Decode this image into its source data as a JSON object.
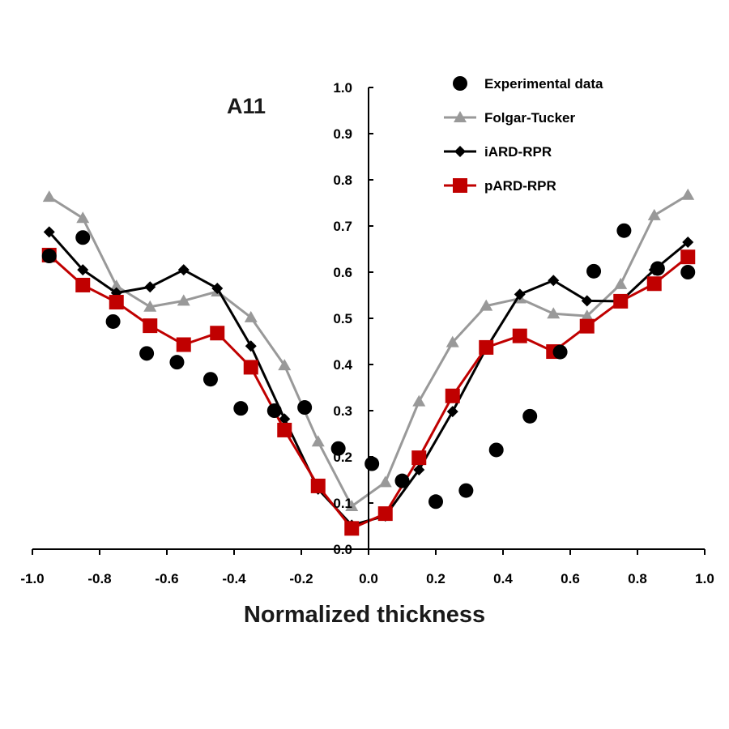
{
  "chart_data": {
    "type": "line",
    "title": "A11",
    "xlabel": "Normalized thickness",
    "ylabel": "",
    "xlim": [
      -1.0,
      1.0
    ],
    "ylim": [
      0.0,
      1.0
    ],
    "x_ticks": [
      "-1.0",
      "-0.8",
      "-0.6",
      "-0.4",
      "-0.2",
      "0.0",
      "0.2",
      "0.4",
      "0.6",
      "0.8",
      "1.0"
    ],
    "y_ticks": [
      "0.0",
      "0.1",
      "0.2",
      "0.3",
      "0.4",
      "0.5",
      "0.6",
      "0.7",
      "0.8",
      "0.9",
      "1.0"
    ],
    "grid": false,
    "legend_position": "top-right",
    "series": [
      {
        "name": "Experimental data",
        "style": "scatter",
        "marker": "circle",
        "color": "#000000",
        "points": [
          [
            -0.95,
            0.635
          ],
          [
            -0.85,
            0.675
          ],
          [
            -0.76,
            0.493
          ],
          [
            -0.66,
            0.424
          ],
          [
            -0.57,
            0.405
          ],
          [
            -0.47,
            0.368
          ],
          [
            -0.38,
            0.305
          ],
          [
            -0.28,
            0.3
          ],
          [
            -0.19,
            0.307
          ],
          [
            -0.09,
            0.218
          ],
          [
            0.01,
            0.185
          ],
          [
            0.1,
            0.148
          ],
          [
            0.2,
            0.103
          ],
          [
            0.29,
            0.127
          ],
          [
            0.38,
            0.215
          ],
          [
            0.48,
            0.288
          ],
          [
            0.57,
            0.427
          ],
          [
            0.67,
            0.602
          ],
          [
            0.76,
            0.69
          ],
          [
            0.86,
            0.608
          ],
          [
            0.95,
            0.6
          ]
        ]
      },
      {
        "name": "Folgar-Tucker",
        "style": "line",
        "marker": "triangle",
        "color": "#999999",
        "points": [
          [
            -0.95,
            0.763
          ],
          [
            -0.85,
            0.717
          ],
          [
            -0.75,
            0.57
          ],
          [
            -0.65,
            0.525
          ],
          [
            -0.55,
            0.538
          ],
          [
            -0.45,
            0.558
          ],
          [
            -0.35,
            0.502
          ],
          [
            -0.25,
            0.398
          ],
          [
            -0.15,
            0.233
          ],
          [
            -0.05,
            0.093
          ],
          [
            0.05,
            0.145
          ],
          [
            0.15,
            0.32
          ],
          [
            0.25,
            0.448
          ],
          [
            0.35,
            0.527
          ],
          [
            0.45,
            0.543
          ],
          [
            0.55,
            0.51
          ],
          [
            0.65,
            0.505
          ],
          [
            0.75,
            0.574
          ],
          [
            0.85,
            0.723
          ],
          [
            0.95,
            0.767
          ]
        ]
      },
      {
        "name": "iARD-RPR",
        "style": "line",
        "marker": "diamond",
        "color": "#000000",
        "points": [
          [
            -0.95,
            0.687
          ],
          [
            -0.85,
            0.605
          ],
          [
            -0.75,
            0.555
          ],
          [
            -0.65,
            0.568
          ],
          [
            -0.55,
            0.605
          ],
          [
            -0.45,
            0.565
          ],
          [
            -0.35,
            0.44
          ],
          [
            -0.25,
            0.282
          ],
          [
            -0.15,
            0.13
          ],
          [
            -0.05,
            0.052
          ],
          [
            0.05,
            0.072
          ],
          [
            0.15,
            0.172
          ],
          [
            0.25,
            0.298
          ],
          [
            0.35,
            0.435
          ],
          [
            0.45,
            0.552
          ],
          [
            0.55,
            0.582
          ],
          [
            0.65,
            0.538
          ],
          [
            0.75,
            0.537
          ],
          [
            0.85,
            0.605
          ],
          [
            0.95,
            0.665
          ]
        ]
      },
      {
        "name": "pARD-RPR",
        "style": "line",
        "marker": "square",
        "color": "#c00000",
        "points": [
          [
            -0.95,
            0.637
          ],
          [
            -0.85,
            0.572
          ],
          [
            -0.75,
            0.535
          ],
          [
            -0.65,
            0.484
          ],
          [
            -0.55,
            0.443
          ],
          [
            -0.45,
            0.468
          ],
          [
            -0.35,
            0.394
          ],
          [
            -0.25,
            0.258
          ],
          [
            -0.15,
            0.137
          ],
          [
            -0.05,
            0.045
          ],
          [
            0.05,
            0.077
          ],
          [
            0.15,
            0.198
          ],
          [
            0.25,
            0.332
          ],
          [
            0.35,
            0.437
          ],
          [
            0.45,
            0.462
          ],
          [
            0.55,
            0.428
          ],
          [
            0.65,
            0.483
          ],
          [
            0.75,
            0.537
          ],
          [
            0.85,
            0.575
          ],
          [
            0.95,
            0.633
          ]
        ]
      }
    ]
  }
}
